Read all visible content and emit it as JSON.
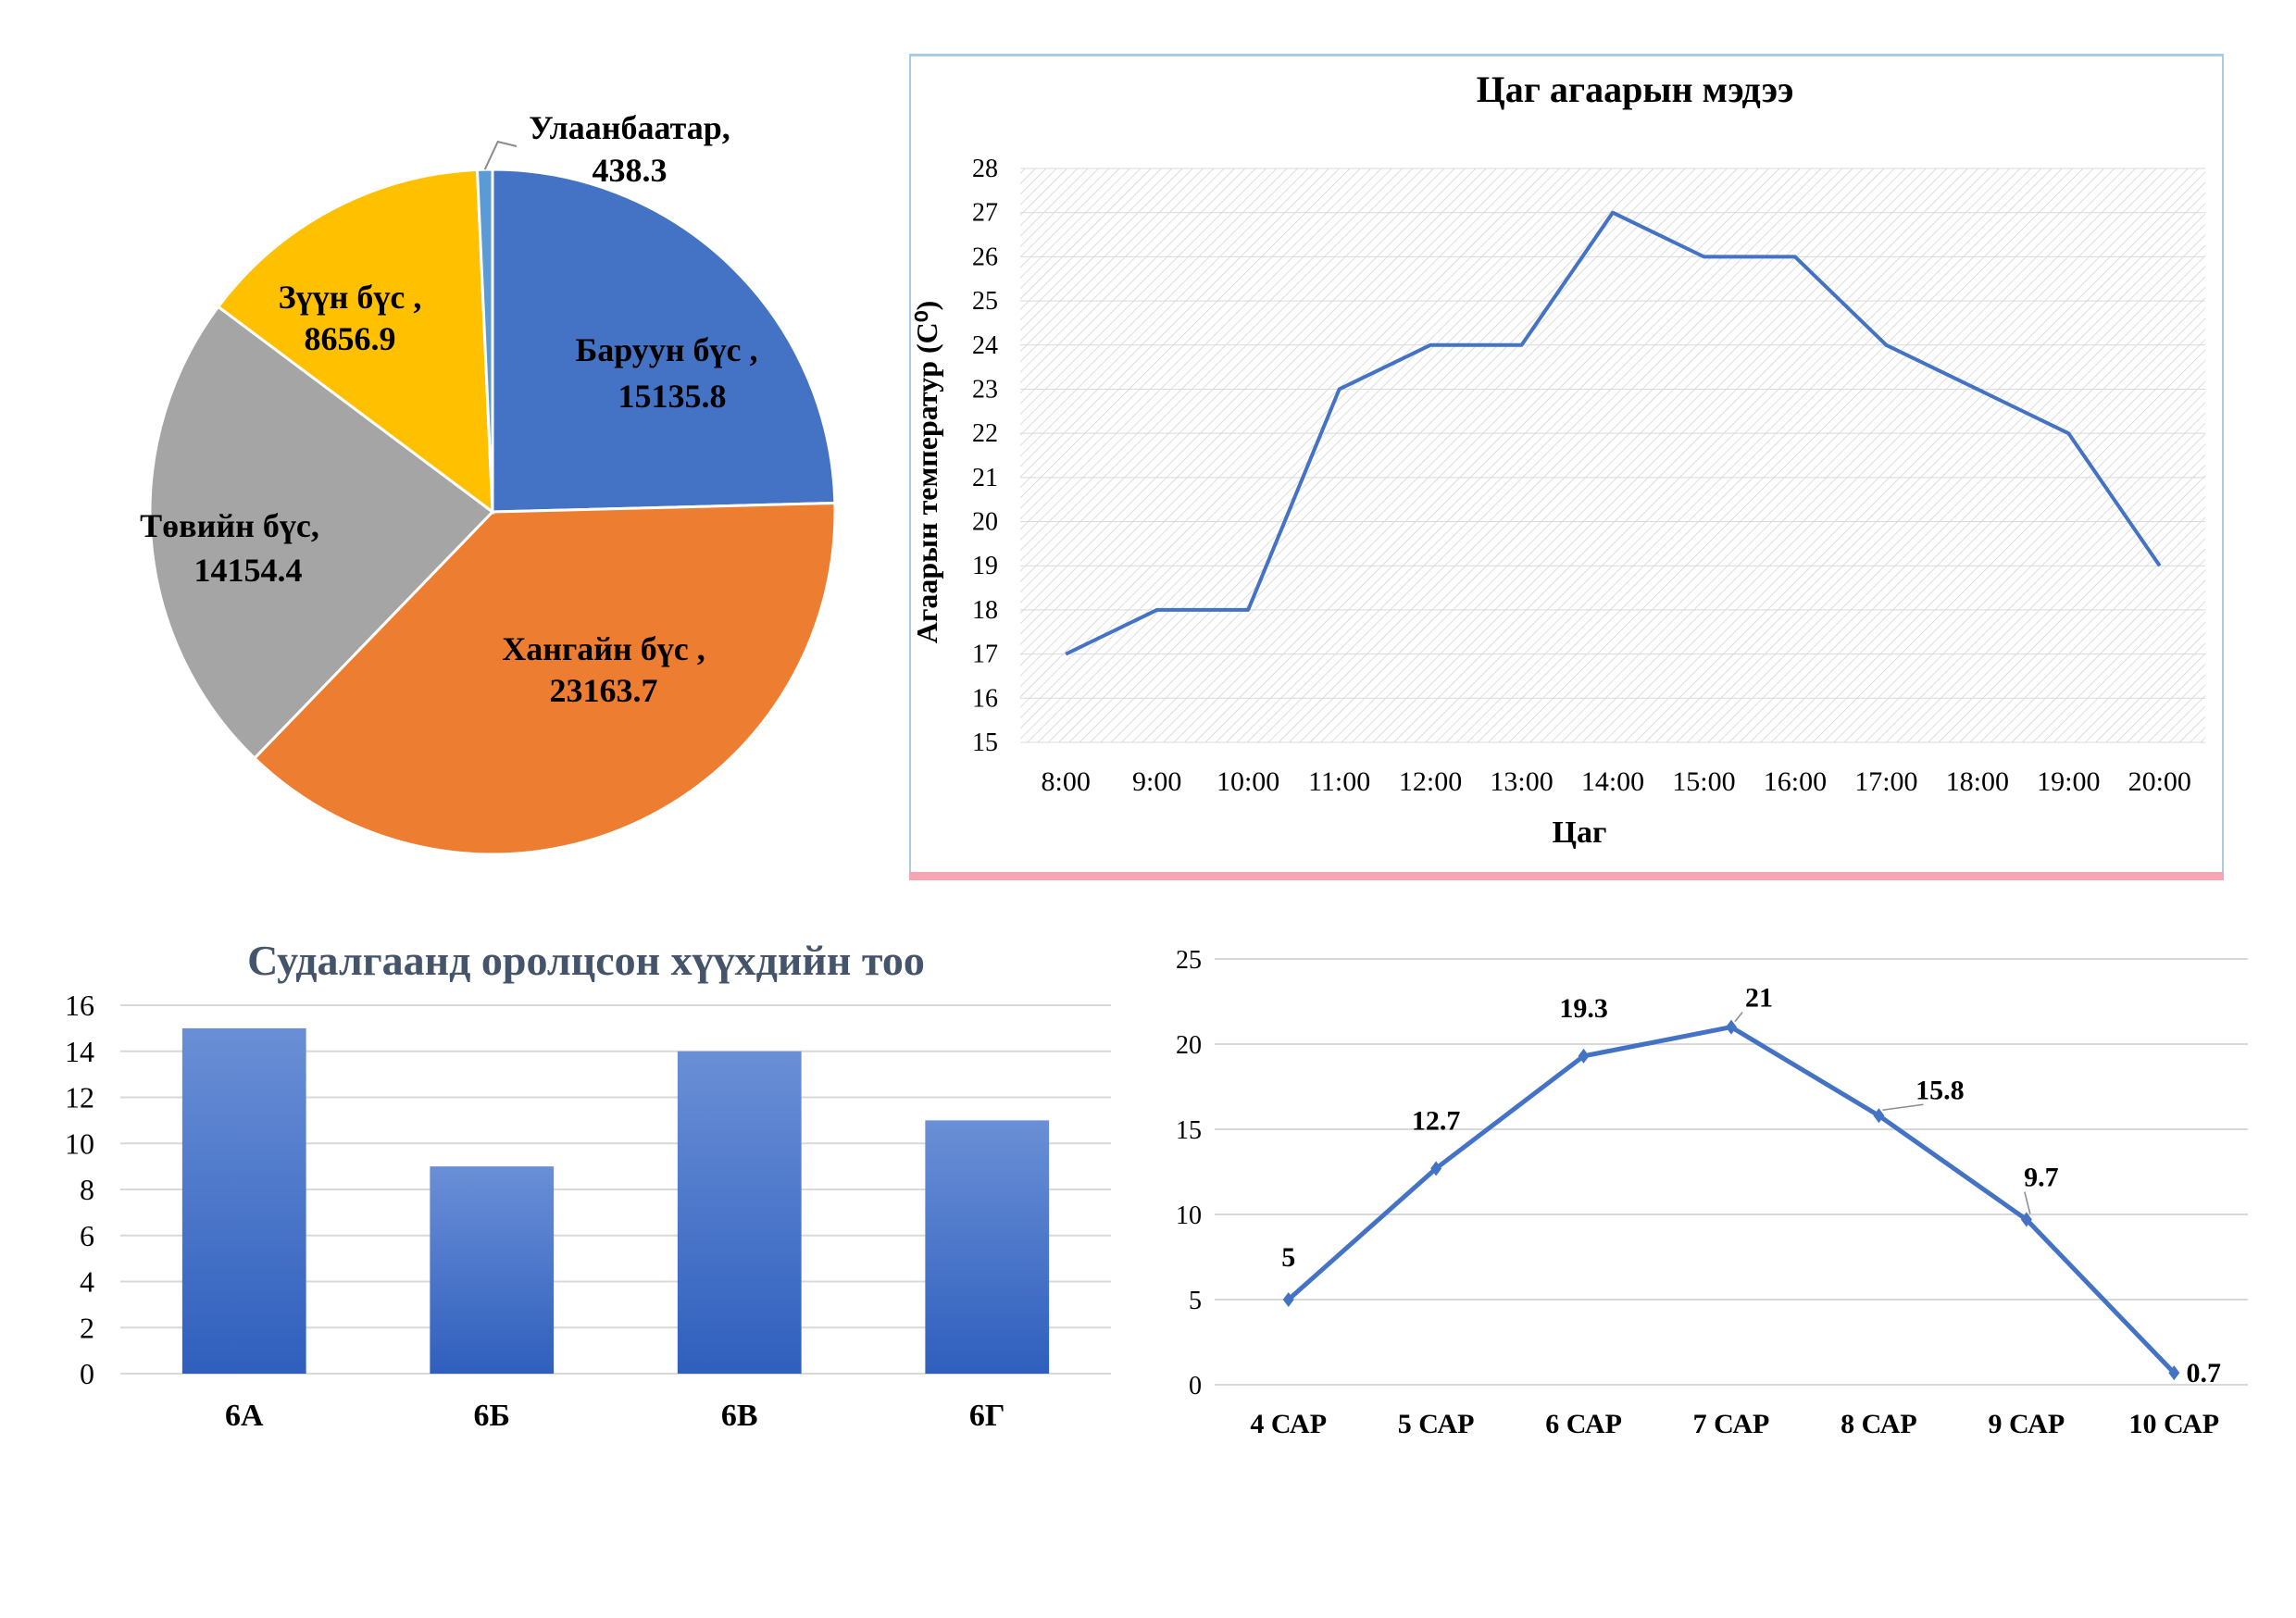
{
  "colors": {
    "pie_west": "#4472C4",
    "pie_khangai": "#ED7D31",
    "pie_central": "#A5A5A5",
    "pie_east": "#FFC000",
    "pie_ub": "#5B9BD5",
    "line_blue": "#4472C4",
    "bar_top": "#6A8FD6",
    "bar_bottom": "#2F5FBD",
    "bar_title": "#44546A",
    "weather_border": "#A9CCE3",
    "weather_bottom": "#F4A6B3"
  },
  "chart_data": [
    {
      "type": "pie",
      "title": "",
      "slices": [
        {
          "name": "Баруун бүс ,",
          "value": 15135.8,
          "value_label": "15135.8",
          "color": "#4472C4"
        },
        {
          "name": "Хангайн бүс ,",
          "value": 23163.7,
          "value_label": "23163.7",
          "color": "#ED7D31"
        },
        {
          "name": "Төвийн бүс,",
          "value": 14154.4,
          "value_label": "14154.4",
          "color": "#A5A5A5"
        },
        {
          "name": "Зүүн бүс ,",
          "value": 8656.9,
          "value_label": "8656.9",
          "color": "#FFC000"
        },
        {
          "name": "Улаанбаатар,",
          "value": 438.3,
          "value_label": "438.3",
          "color": "#5B9BD5"
        }
      ]
    },
    {
      "type": "line",
      "title": "Цаг агаарын мэдээ",
      "xlabel": "Цаг",
      "ylabel": "Агаарын температур (C⁰)",
      "categories": [
        "8:00",
        "9:00",
        "10:00",
        "11:00",
        "12:00",
        "13:00",
        "14:00",
        "15:00",
        "16:00",
        "17:00",
        "18:00",
        "19:00",
        "20:00"
      ],
      "values": [
        17,
        18,
        18,
        23,
        24,
        24,
        27,
        26,
        26,
        24,
        23,
        22,
        19
      ],
      "ylim": [
        15,
        28
      ],
      "yticks": [
        "15",
        "16",
        "17",
        "18",
        "19",
        "20",
        "21",
        "22",
        "23",
        "24",
        "25",
        "26",
        "27",
        "28"
      ],
      "grid": true
    },
    {
      "type": "bar",
      "title": "Судалгаанд оролцсон хүүхдийн тоо",
      "xlabel": "",
      "ylabel": "",
      "categories": [
        "6А",
        "6Б",
        "6В",
        "6Г"
      ],
      "values": [
        15,
        9,
        14,
        11
      ],
      "ylim": [
        0,
        16
      ],
      "yticks": [
        "0",
        "2",
        "4",
        "6",
        "8",
        "10",
        "12",
        "14",
        "16"
      ],
      "grid": true
    },
    {
      "type": "line",
      "title": "",
      "xlabel": "",
      "ylabel": "",
      "categories": [
        "4 САР",
        "5 САР",
        "6 САР",
        "7 САР",
        "8 САР",
        "9 САР",
        "10 САР"
      ],
      "values": [
        5,
        12.7,
        19.3,
        21,
        15.8,
        9.7,
        0.7
      ],
      "value_labels": [
        "5",
        "12.7",
        "19.3",
        "21",
        "15.8",
        "9.7",
        "0.7"
      ],
      "ylim": [
        0,
        25
      ],
      "yticks": [
        "0",
        "5",
        "10",
        "15",
        "20",
        "25"
      ],
      "grid": true
    }
  ]
}
